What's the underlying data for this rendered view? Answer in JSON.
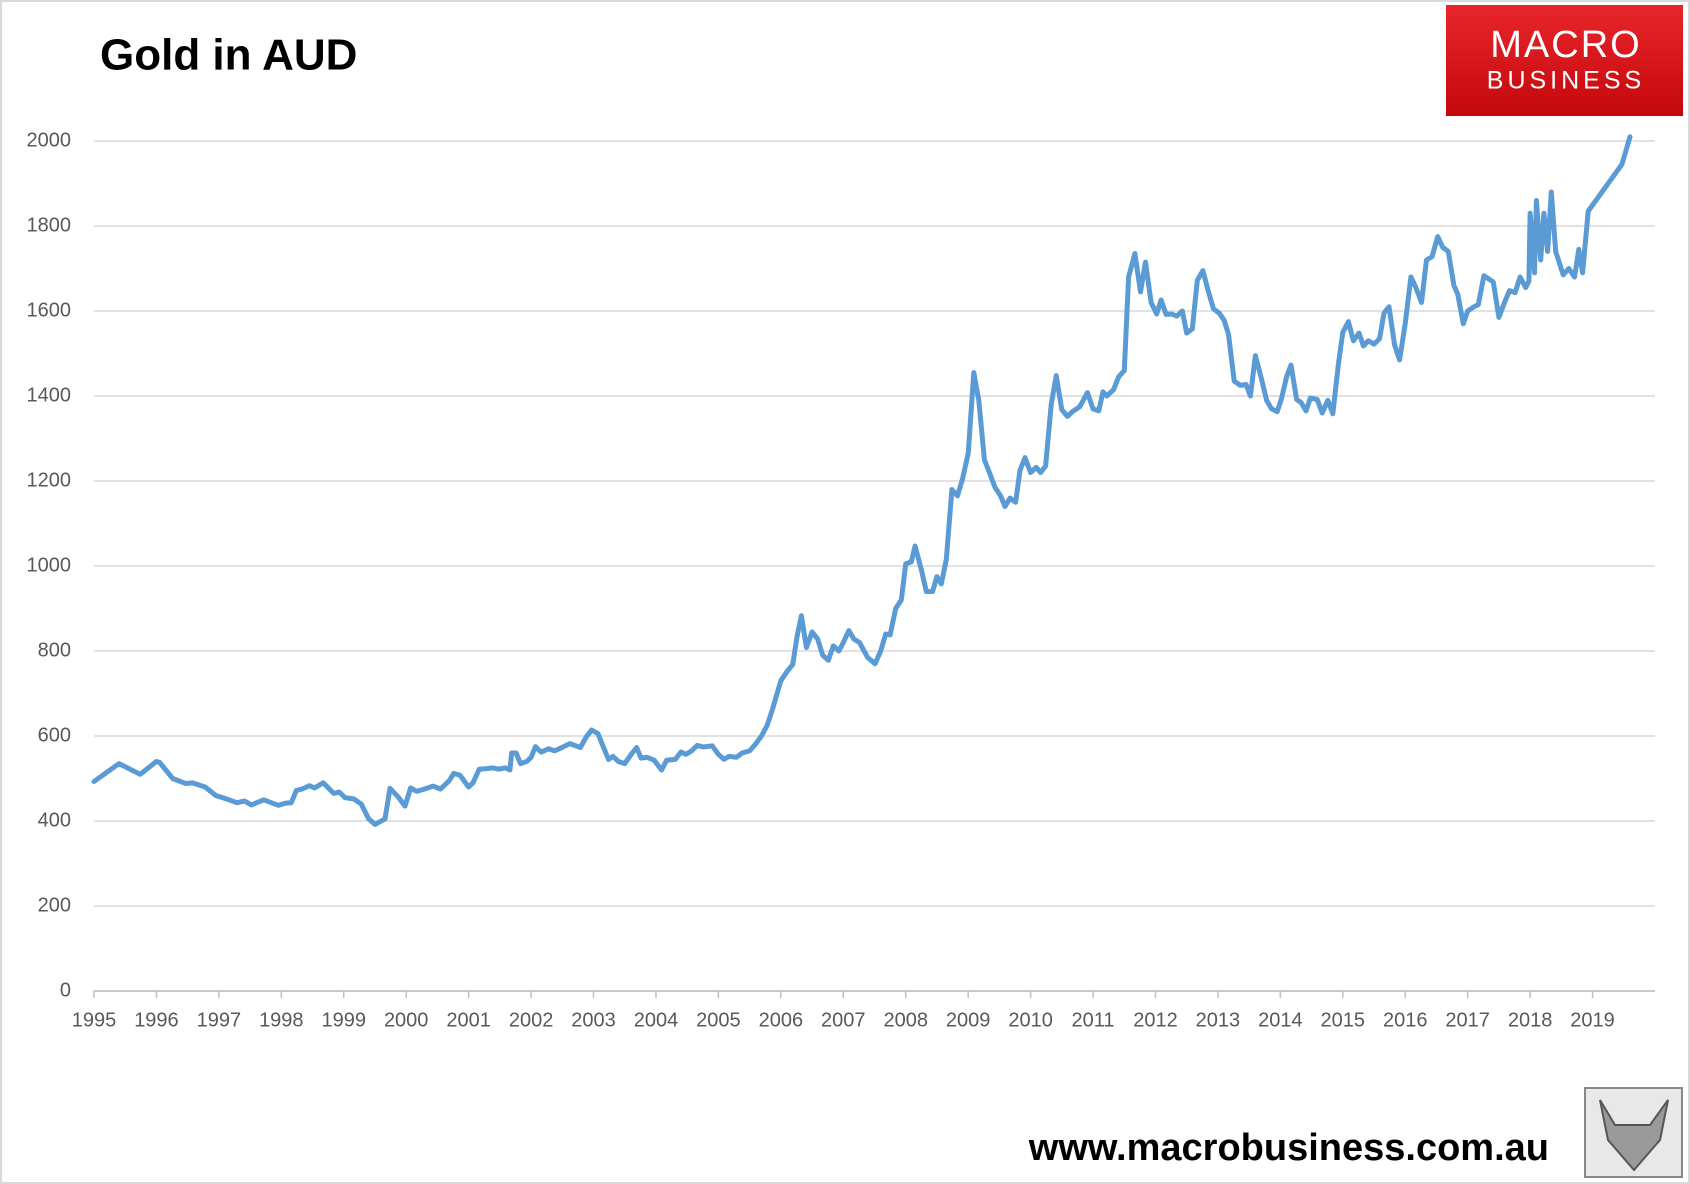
{
  "chart_data": {
    "type": "line",
    "title": "Gold in AUD",
    "logo": {
      "top": "MACRO",
      "bottom": "BUSINESS"
    },
    "source": "www.macrobusiness.com.au",
    "color": "#5b9bd5",
    "xlim": [
      1995,
      2020
    ],
    "ylim": [
      0,
      2000
    ],
    "xticks": [
      1995,
      1996,
      1997,
      1998,
      1999,
      2000,
      2001,
      2002,
      2003,
      2004,
      2005,
      2006,
      2007,
      2008,
      2009,
      2010,
      2011,
      2012,
      2013,
      2014,
      2015,
      2016,
      2017,
      2018,
      2019
    ],
    "yticks": [
      0,
      200,
      400,
      600,
      800,
      1000,
      1200,
      1400,
      1600,
      1800,
      2000
    ],
    "grid": true,
    "x": [
      1995.0,
      1995.4,
      1995.74,
      1996.0,
      1996.05,
      1996.26,
      1996.47,
      1996.57,
      1996.78,
      1996.95,
      1997.16,
      1997.29,
      1997.41,
      1997.52,
      1997.72,
      1997.95,
      1998.07,
      1998.16,
      1998.24,
      1998.33,
      1998.45,
      1998.53,
      1998.67,
      1998.84,
      1998.93,
      1999.02,
      1999.16,
      1999.28,
      1999.4,
      1999.5,
      1999.66,
      1999.74,
      1999.88,
      1999.98,
      2000.07,
      2000.17,
      2000.29,
      2000.43,
      2000.55,
      2000.69,
      2000.76,
      2000.86,
      2001.0,
      2001.07,
      2001.17,
      2001.28,
      2001.38,
      2001.48,
      2001.59,
      2001.66,
      2001.69,
      2001.76,
      2001.83,
      2001.93,
      2002.0,
      2002.07,
      2002.16,
      2002.28,
      2002.38,
      2002.48,
      2002.62,
      2002.79,
      2002.88,
      2002.97,
      2003.07,
      2003.17,
      2003.24,
      2003.31,
      2003.4,
      2003.5,
      2003.62,
      2003.69,
      2003.76,
      2003.86,
      2003.97,
      2004.09,
      2004.17,
      2004.31,
      2004.4,
      2004.48,
      2004.57,
      2004.66,
      2004.76,
      2004.9,
      2005.0,
      2005.09,
      2005.17,
      2005.29,
      2005.38,
      2005.5,
      2005.59,
      2005.69,
      2005.78,
      2005.86,
      2006.0,
      2006.1,
      2006.19,
      2006.26,
      2006.33,
      2006.41,
      2006.5,
      2006.59,
      2006.67,
      2006.76,
      2006.84,
      2006.93,
      2007.0,
      2007.09,
      2007.17,
      2007.26,
      2007.39,
      2007.51,
      2007.6,
      2007.68,
      2007.75,
      2007.84,
      2007.93,
      2008.0,
      2008.09,
      2008.15,
      2008.26,
      2008.33,
      2008.43,
      2008.5,
      2008.57,
      2008.65,
      2008.74,
      2008.83,
      2008.91,
      2009.0,
      2009.09,
      2009.17,
      2009.26,
      2009.34,
      2009.43,
      2009.52,
      2009.59,
      2009.67,
      2009.76,
      2009.83,
      2009.91,
      2010.0,
      2010.09,
      2010.16,
      2010.24,
      2010.33,
      2010.41,
      2010.5,
      2010.59,
      2010.67,
      2010.79,
      2010.91,
      2011.0,
      2011.09,
      2011.16,
      2011.22,
      2011.33,
      2011.41,
      2011.5,
      2011.57,
      2011.67,
      2011.76,
      2011.84,
      2011.93,
      2012.02,
      2012.09,
      2012.17,
      2012.26,
      2012.34,
      2012.43,
      2012.5,
      2012.59,
      2012.67,
      2012.76,
      2012.84,
      2012.93,
      2013.02,
      2013.1,
      2013.17,
      2013.26,
      2013.36,
      2013.45,
      2013.52,
      2013.6,
      2013.69,
      2013.78,
      2013.86,
      2013.95,
      2014.02,
      2014.1,
      2014.17,
      2014.26,
      2014.33,
      2014.41,
      2014.48,
      2014.59,
      2014.67,
      2014.76,
      2014.84,
      2014.93,
      2015.0,
      2015.09,
      2015.17,
      2015.26,
      2015.33,
      2015.41,
      2015.5,
      2015.59,
      2015.66,
      2015.74,
      2015.83,
      2015.91,
      2016.0,
      2016.09,
      2016.17,
      2016.26,
      2016.34,
      2016.43,
      2016.52,
      2016.6,
      2016.69,
      2016.78,
      2016.84,
      2016.93,
      2017.0,
      2017.1,
      2017.17,
      2017.26,
      2017.34,
      2017.41,
      2017.5,
      2017.59,
      2017.67,
      2017.76,
      2017.84,
      2017.93,
      2017.98,
      2018.0,
      2018.07,
      2018.1,
      2018.17,
      2018.22,
      2018.28,
      2018.34,
      2018.41,
      2018.53,
      2018.62,
      2018.71,
      2018.78,
      2018.84,
      2018.93,
      2019.47,
      2019.6
    ],
    "values": [
      493,
      535,
      510,
      540,
      538,
      500,
      488,
      490,
      480,
      460,
      450,
      443,
      447,
      438,
      450,
      437,
      442,
      443,
      472,
      475,
      483,
      478,
      490,
      465,
      468,
      455,
      452,
      440,
      405,
      392,
      405,
      477,
      455,
      435,
      478,
      470,
      475,
      482,
      475,
      495,
      512,
      508,
      480,
      490,
      522,
      523,
      525,
      522,
      525,
      520,
      560,
      560,
      535,
      540,
      550,
      575,
      562,
      570,
      565,
      572,
      582,
      573,
      597,
      614,
      606,
      570,
      545,
      552,
      540,
      535,
      560,
      573,
      548,
      550,
      543,
      520,
      543,
      545,
      562,
      557,
      565,
      578,
      574,
      577,
      557,
      545,
      552,
      550,
      560,
      565,
      580,
      600,
      625,
      660,
      730,
      752,
      768,
      835,
      883,
      808,
      845,
      828,
      790,
      778,
      812,
      800,
      820,
      848,
      828,
      820,
      785,
      770,
      800,
      840,
      838,
      900,
      920,
      1005,
      1010,
      1047,
      985,
      940,
      940,
      975,
      958,
      1015,
      1180,
      1165,
      1205,
      1265,
      1455,
      1390,
      1250,
      1220,
      1185,
      1165,
      1140,
      1160,
      1150,
      1225,
      1255,
      1220,
      1232,
      1220,
      1235,
      1380,
      1448,
      1368,
      1352,
      1363,
      1375,
      1408,
      1370,
      1365,
      1410,
      1400,
      1415,
      1445,
      1460,
      1680,
      1735,
      1645,
      1715,
      1620,
      1593,
      1626,
      1592,
      1593,
      1588,
      1600,
      1548,
      1558,
      1672,
      1695,
      1650,
      1605,
      1595,
      1578,
      1545,
      1435,
      1425,
      1427,
      1400,
      1495,
      1445,
      1390,
      1370,
      1363,
      1395,
      1445,
      1473,
      1392,
      1385,
      1365,
      1395,
      1392,
      1360,
      1390,
      1358,
      1475,
      1550,
      1575,
      1530,
      1548,
      1518,
      1530,
      1522,
      1535,
      1595,
      1610,
      1520,
      1485,
      1570,
      1680,
      1655,
      1620,
      1720,
      1728,
      1775,
      1750,
      1740,
      1660,
      1640,
      1570,
      1600,
      1610,
      1615,
      1683,
      1675,
      1668,
      1585,
      1620,
      1648,
      1643,
      1680,
      1655,
      1670,
      1830,
      1690,
      1860,
      1720,
      1830,
      1740,
      1880,
      1740,
      1685,
      1700,
      1680,
      1745,
      1690,
      1835,
      1945,
      2010
    ]
  }
}
